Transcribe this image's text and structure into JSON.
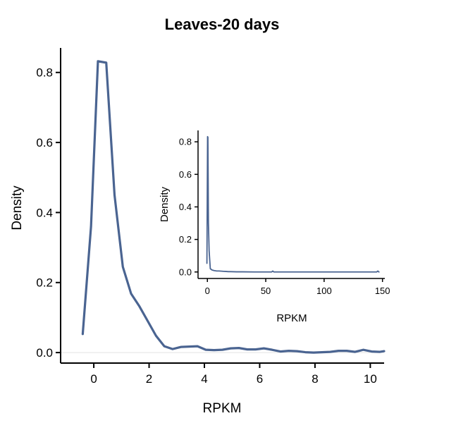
{
  "chart_data": [
    {
      "type": "line",
      "title": "Leaves-20 days",
      "xlabel": "RPKM",
      "ylabel": "Density",
      "xlim": [
        -1.2,
        10.5
      ],
      "ylim": [
        -0.03,
        0.87
      ],
      "xticks": [
        0,
        2,
        4,
        6,
        8,
        10
      ],
      "yticks": [
        0.0,
        0.2,
        0.4,
        0.6,
        0.8
      ],
      "xtick_labels": [
        "0",
        "2",
        "4",
        "6",
        "8",
        "10"
      ],
      "ytick_labels": [
        "0.0",
        "0.2",
        "0.4",
        "0.6",
        "0.8"
      ],
      "reference_line_y": 0,
      "color": "#4a6491",
      "series": [
        {
          "x": [
            -0.4,
            -0.1,
            0.15,
            0.45,
            0.75,
            1.05,
            1.35,
            1.65,
            1.95,
            2.25,
            2.55,
            2.85,
            3.15,
            3.45,
            3.75,
            4.05,
            4.35,
            4.65,
            4.95,
            5.25,
            5.55,
            5.85,
            6.15,
            6.45,
            6.75,
            7.05,
            7.35,
            7.65,
            7.95,
            8.25,
            8.55,
            8.85,
            9.15,
            9.45,
            9.75,
            10.05,
            10.35,
            10.5
          ],
          "y": [
            0.053,
            0.36,
            0.832,
            0.828,
            0.45,
            0.245,
            0.168,
            0.132,
            0.09,
            0.048,
            0.018,
            0.01,
            0.016,
            0.017,
            0.018,
            0.008,
            0.007,
            0.008,
            0.012,
            0.013,
            0.009,
            0.009,
            0.012,
            0.008,
            0.003,
            0.005,
            0.004,
            0.001,
            0.0,
            0.001,
            0.002,
            0.005,
            0.005,
            0.002,
            0.008,
            0.003,
            0.002,
            0.004
          ]
        }
      ]
    },
    {
      "type": "line",
      "title": "",
      "xlabel": "RPKM",
      "ylabel": "Density",
      "xlim": [
        -8,
        152
      ],
      "ylim": [
        -0.04,
        0.87
      ],
      "xticks": [
        0,
        50,
        100,
        150
      ],
      "yticks": [
        0.0,
        0.2,
        0.4,
        0.6,
        0.8
      ],
      "xtick_labels": [
        "0",
        "50",
        "100",
        "150"
      ],
      "ytick_labels": [
        "0.0",
        "0.2",
        "0.4",
        "0.6",
        "0.8"
      ],
      "color": "#4a6491",
      "series": [
        {
          "x": [
            -0.4,
            0.15,
            0.45,
            0.9,
            1.5,
            2.5,
            4,
            6,
            8,
            10,
            12,
            14,
            16,
            18,
            20,
            25,
            30,
            40,
            50,
            55,
            56,
            57,
            60,
            80,
            100,
            120,
            140,
            145,
            146,
            147
          ],
          "y": [
            0.053,
            0.832,
            0.828,
            0.3,
            0.13,
            0.02,
            0.012,
            0.008,
            0.006,
            0.006,
            0.005,
            0.004,
            0.003,
            0.002,
            0.002,
            0.001,
            0.001,
            0.0,
            0.0,
            0.0,
            0.006,
            0.0,
            0.0,
            0.0,
            0.0,
            0.0,
            0.0,
            0.0,
            0.006,
            0.0
          ]
        }
      ]
    }
  ]
}
